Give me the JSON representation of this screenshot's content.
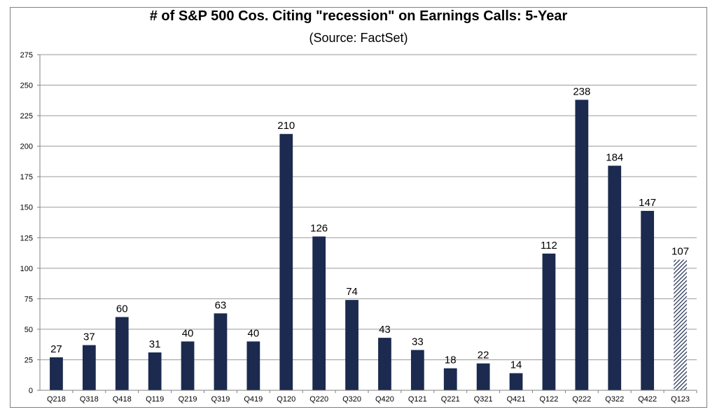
{
  "chart_data": {
    "type": "bar",
    "title": "# of S&P 500 Cos. Citing \"recession\" on Earnings Calls: 5-Year",
    "subtitle": "(Source: FactSet)",
    "xlabel": "",
    "ylabel": "",
    "ylim": [
      0,
      275
    ],
    "yticks": [
      0,
      25,
      50,
      75,
      100,
      125,
      150,
      175,
      200,
      225,
      250,
      275
    ],
    "grid": true,
    "categories": [
      "Q218",
      "Q318",
      "Q418",
      "Q119",
      "Q219",
      "Q319",
      "Q419",
      "Q120",
      "Q220",
      "Q320",
      "Q420",
      "Q121",
      "Q221",
      "Q321",
      "Q421",
      "Q122",
      "Q222",
      "Q322",
      "Q422",
      "Q123"
    ],
    "values": [
      27,
      37,
      60,
      31,
      40,
      63,
      40,
      210,
      126,
      74,
      43,
      33,
      18,
      22,
      14,
      112,
      238,
      184,
      147,
      107
    ],
    "data_labels": [
      "27",
      "37",
      "60",
      "31",
      "40",
      "63",
      "40",
      "210",
      "126",
      "74",
      "43",
      "33",
      "18",
      "22",
      "14",
      "112",
      "238",
      "184",
      "147",
      "107"
    ],
    "hatched_categories": [
      "Q123"
    ],
    "bar_color": "#1b2a4e"
  }
}
